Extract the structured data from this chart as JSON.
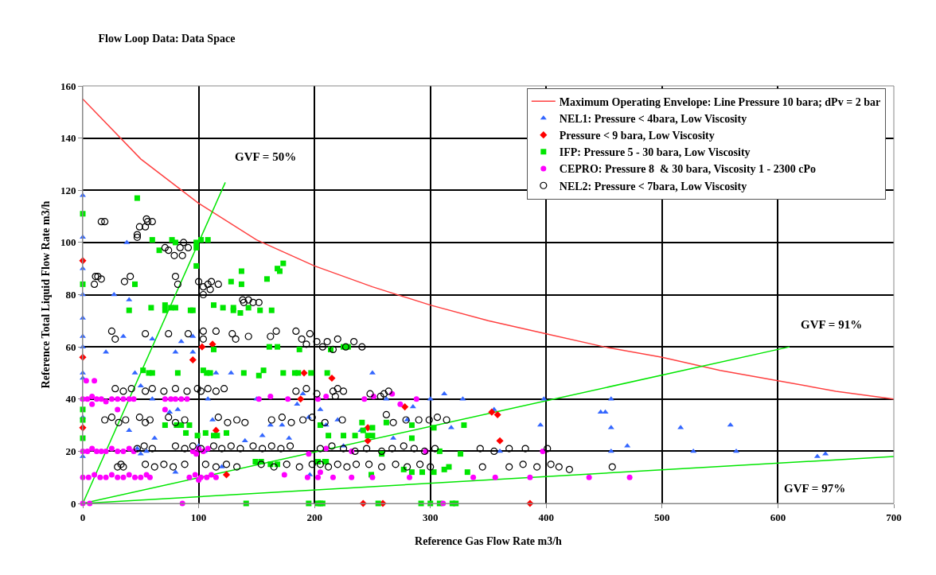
{
  "chart_data": {
    "type": "scatter",
    "title": "Flow Loop Data: Data Space",
    "xlabel": "Reference Gas Flow Rate m3/h",
    "ylabel": "Reference Total Liquid Flow Rate m3/h",
    "xlim": [
      0,
      700
    ],
    "ylim": [
      0,
      160
    ],
    "xticks": [
      0,
      100,
      200,
      300,
      400,
      500,
      600,
      700
    ],
    "yticks": [
      0,
      20,
      40,
      60,
      80,
      100,
      120,
      140,
      160
    ],
    "grid": true,
    "legend": "top right",
    "annotations": [
      "GVF = 50%",
      "GVF = 91%",
      "GVF = 97%"
    ],
    "series": [
      {
        "name": "Maximum Operating Envelope: Line Pressure 10 bara; dPv = 2 bar",
        "type": "line",
        "color": "#ff4040",
        "line_style": "solid",
        "marker": "none",
        "x": [
          0,
          50,
          100,
          150,
          200,
          250,
          300,
          350,
          400,
          450,
          500,
          550,
          600,
          650,
          700
        ],
        "values": [
          155,
          132,
          115,
          101,
          91,
          83,
          76,
          70,
          65,
          60,
          56,
          51,
          47,
          43,
          40
        ]
      },
      {
        "name": "NEL1: Pressure < 4bara, Low Viscosity",
        "color": "#3366ff",
        "marker": "triangle",
        "x": [
          0,
          0,
          0,
          0,
          0,
          0,
          0,
          0,
          0,
          0,
          0,
          0,
          20,
          27,
          38,
          40,
          35,
          45,
          50,
          60,
          80,
          85,
          95,
          95,
          60,
          75,
          40,
          47,
          50,
          62,
          55,
          82,
          80,
          100,
          108,
          112,
          115,
          128,
          105,
          120,
          140,
          150,
          155,
          162,
          172,
          178,
          185,
          190,
          196,
          195,
          205,
          210,
          220,
          225,
          240,
          250,
          262,
          268,
          280,
          285,
          300,
          312,
          318,
          328,
          355,
          360,
          398,
          395,
          447,
          451,
          456,
          456,
          456,
          470,
          516,
          527,
          559,
          564,
          634,
          641
        ],
        "values": [
          118,
          102,
          90,
          80,
          71,
          64,
          60,
          50,
          48,
          40,
          33,
          18,
          58,
          80,
          100,
          78,
          64,
          50,
          45,
          63,
          58,
          62,
          64,
          58,
          40,
          35,
          28,
          21,
          19,
          25,
          20,
          36,
          12,
          22,
          40,
          32,
          50,
          50,
          20,
          14,
          24,
          40,
          26,
          30,
          30,
          25,
          38,
          42,
          11,
          33,
          36,
          30,
          32,
          22,
          28,
          50,
          40,
          25,
          32,
          37,
          40,
          42,
          29,
          40,
          36,
          20,
          40,
          30,
          35,
          35,
          40,
          29,
          20,
          22,
          29,
          20,
          30,
          20,
          18,
          19
        ]
      },
      {
        "name": "Pressure < 9 bara, Low Viscosity",
        "color": "#ff0000",
        "marker": "diamond",
        "x": [
          0,
          0,
          0,
          95,
          103,
          112,
          115,
          124,
          191,
          188,
          215,
          278,
          246,
          246,
          242,
          259,
          353,
          358,
          360,
          386
        ],
        "values": [
          93,
          56,
          29,
          55,
          60,
          61,
          28,
          11,
          50,
          40,
          48,
          37,
          29,
          24,
          0,
          0,
          35,
          34,
          24,
          0
        ]
      },
      {
        "name": "IFP: Pressure 5 - 30 bara, Low Viscosity",
        "color": "#00e600",
        "marker": "square",
        "x": [
          47,
          0,
          0,
          60,
          77,
          80,
          66,
          98,
          102,
          108,
          98,
          98,
          45,
          137,
          128,
          137,
          159,
          168,
          170,
          173,
          40,
          59,
          71,
          71,
          76,
          80,
          93,
          95,
          113,
          121,
          130,
          130,
          136,
          143,
          153,
          163,
          0,
          0,
          0,
          52,
          57,
          60,
          82,
          104,
          107,
          110,
          113,
          139,
          152,
          156,
          173,
          183,
          186,
          197,
          161,
          168,
          187,
          71,
          81,
          85,
          92,
          89,
          99,
          106,
          113,
          116,
          124,
          149,
          154,
          162,
          168,
          203,
          210,
          141,
          195,
          203,
          207,
          205,
          214,
          225,
          229,
          211,
          241,
          250,
          212,
          225,
          235,
          242,
          246,
          250,
          262,
          284,
          284,
          303,
          329,
          209,
          258,
          277,
          284,
          293,
          303,
          312,
          316,
          332,
          308,
          326,
          249,
          205,
          255,
          292,
          300,
          308,
          319,
          322
        ],
        "values": [
          117,
          111,
          84,
          101,
          101,
          100,
          97,
          100,
          101,
          101,
          91,
          98,
          84,
          89,
          85,
          84,
          86,
          90,
          89,
          92,
          74,
          75,
          76,
          74,
          75,
          75,
          74,
          74,
          76,
          75,
          75,
          74,
          73,
          75,
          74,
          74,
          36,
          32,
          25,
          51,
          50,
          50,
          50,
          51,
          50,
          50,
          59,
          50,
          49,
          51,
          50,
          50,
          50,
          50,
          60,
          60,
          59,
          30,
          30,
          30,
          30,
          27,
          26,
          27,
          26,
          26,
          27,
          16,
          16,
          15,
          15,
          16,
          16,
          0,
          0,
          0,
          0,
          30,
          59,
          60,
          60,
          50,
          31,
          29,
          26,
          26,
          26,
          28,
          26,
          26,
          31,
          25,
          30,
          29,
          30,
          16,
          19,
          13,
          12,
          12,
          12,
          13,
          14,
          12,
          20,
          19,
          11,
          0,
          0,
          0,
          0,
          0,
          0,
          0
        ]
      },
      {
        "name": "CEPRO: Pressure 8  & 30 bara, Viscosity 1 - 2300 cPo",
        "color": "#ff00ff",
        "marker": "circle",
        "x": [
          0,
          4,
          8,
          12,
          16,
          20,
          25,
          30,
          35,
          40,
          44,
          71,
          76,
          80,
          85,
          90,
          71,
          30,
          8,
          3,
          10,
          152,
          162,
          177,
          203,
          210,
          243,
          251,
          267,
          274,
          288,
          0,
          4,
          8,
          12,
          16,
          20,
          25,
          30,
          35,
          40,
          44,
          95,
          100,
          104,
          108,
          98,
          195,
          210,
          232,
          296,
          397,
          0,
          5,
          10,
          15,
          20,
          25,
          30,
          35,
          40,
          45,
          50,
          55,
          58,
          92,
          97,
          102,
          107,
          111,
          115,
          100,
          174,
          194,
          203,
          205,
          216,
          232,
          250,
          282,
          337,
          356,
          386,
          437,
          472,
          0,
          6,
          86,
          311
        ],
        "values": [
          40,
          40,
          41,
          40,
          40,
          39,
          40,
          40,
          40,
          40,
          40,
          40,
          40,
          40,
          40,
          40,
          36,
          36,
          38,
          47,
          47,
          40,
          41,
          40,
          40,
          41,
          40,
          41,
          42,
          38,
          40,
          20,
          20,
          21,
          20,
          20,
          20,
          21,
          20,
          20,
          21,
          20,
          20,
          21,
          20,
          21,
          19,
          19,
          21,
          20,
          20,
          20,
          10,
          10,
          11,
          10,
          10,
          11,
          10,
          10,
          11,
          10,
          10,
          11,
          10,
          10,
          11,
          10,
          10,
          11,
          10,
          9,
          11,
          10,
          10,
          12,
          10,
          10,
          10,
          10,
          10,
          10,
          10,
          10,
          10,
          0,
          0,
          0,
          0
        ]
      },
      {
        "name": "NEL2: Pressure < 7bara, Low Viscosity",
        "color": "#000000",
        "marker": "circle-open",
        "x": [
          16,
          19,
          55,
          49,
          54,
          60,
          47,
          47,
          56,
          71,
          74,
          79,
          87,
          84,
          91,
          86,
          11,
          13,
          16,
          10,
          36,
          41,
          80,
          82,
          100,
          104,
          108,
          110,
          111,
          117,
          104,
          138,
          143,
          147,
          152,
          139,
          25,
          28,
          54,
          74,
          91,
          104,
          104,
          115,
          129,
          132,
          143,
          162,
          167,
          184,
          189,
          196,
          202,
          211,
          220,
          234,
          241,
          227,
          216,
          207,
          193,
          28,
          35,
          42,
          54,
          60,
          70,
          80,
          90,
          99,
          102,
          108,
          115,
          122,
          184,
          193,
          202,
          216,
          220,
          225,
          218,
          248,
          257,
          264,
          260,
          19,
          25,
          31,
          37,
          49,
          54,
          58,
          74,
          80,
          88,
          117,
          125,
          133,
          140,
          163,
          172,
          180,
          190,
          198,
          209,
          224,
          262,
          268,
          279,
          290,
          299,
          306,
          314,
          47,
          53,
          60,
          80,
          88,
          95,
          102,
          113,
          120,
          128,
          136,
          147,
          155,
          163,
          171,
          179,
          205,
          215,
          225,
          235,
          245,
          258,
          267,
          277,
          286,
          295,
          304,
          343,
          355,
          368,
          382,
          401,
          30,
          33,
          35,
          54,
          62,
          70,
          78,
          88,
          106,
          115,
          124,
          133,
          154,
          165,
          176,
          187,
          198,
          205,
          212,
          220,
          228,
          236,
          247,
          258,
          270,
          280,
          291,
          300,
          345,
          368,
          380,
          392,
          404,
          411,
          420,
          457
        ],
        "values": [
          108,
          108,
          109,
          106,
          106,
          108,
          103,
          102,
          108,
          98,
          97,
          95,
          100,
          98,
          98,
          95,
          87,
          87,
          86,
          84,
          85,
          87,
          87,
          84,
          85,
          83,
          84,
          82,
          85,
          84,
          80,
          78,
          78,
          77,
          77,
          77,
          66,
          63,
          65,
          65,
          65,
          66,
          63,
          66,
          65,
          63,
          64,
          64,
          66,
          66,
          63,
          65,
          62,
          62,
          63,
          62,
          60,
          60,
          59,
          60,
          61,
          44,
          43,
          44,
          43,
          44,
          43,
          44,
          43,
          44,
          43,
          44,
          43,
          44,
          43,
          44,
          42,
          43,
          44,
          43,
          41,
          42,
          41,
          43,
          42,
          32,
          33,
          31,
          32,
          33,
          31,
          32,
          33,
          31,
          32,
          33,
          31,
          32,
          31,
          32,
          33,
          31,
          32,
          33,
          31,
          32,
          34,
          31,
          32,
          32,
          32,
          33,
          32,
          21,
          22,
          21,
          22,
          21,
          22,
          21,
          22,
          21,
          22,
          21,
          22,
          21,
          22,
          21,
          22,
          21,
          22,
          21,
          20,
          21,
          20,
          21,
          22,
          21,
          20,
          21,
          21,
          20,
          21,
          21,
          21,
          14,
          15,
          14,
          15,
          14,
          15,
          14,
          15,
          15,
          14,
          15,
          14,
          15,
          14,
          15,
          14,
          15,
          15,
          14,
          15,
          14,
          15,
          15,
          14,
          15,
          14,
          15,
          14,
          14,
          14,
          15,
          14,
          15,
          14,
          13,
          14
        ]
      },
      {
        "type": "line",
        "color": "#00e600",
        "line_style": "solid",
        "marker": "none",
        "x": [
          0,
          123
        ],
        "values": [
          0,
          123
        ]
      },
      {
        "type": "line",
        "color": "#00e600",
        "line_style": "solid",
        "marker": "none",
        "x": [
          0,
          610
        ],
        "values": [
          0,
          60
        ]
      },
      {
        "type": "line",
        "color": "#00e600",
        "line_style": "solid",
        "marker": "none",
        "x": [
          0,
          700
        ],
        "values": [
          0,
          18
        ]
      }
    ]
  }
}
